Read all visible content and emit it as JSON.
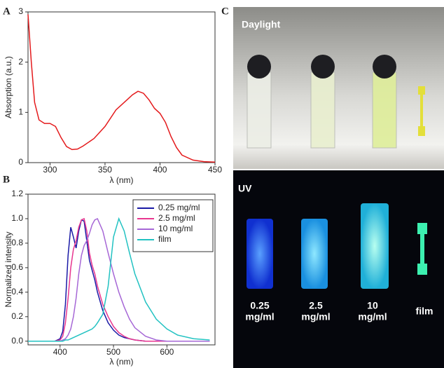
{
  "chart_data": [
    {
      "type": "line",
      "panel_label": "A",
      "x_label": "λ (nm)",
      "y_label": "Absorption (a.u.)",
      "xlim": [
        280,
        450
      ],
      "xticks": [
        300,
        350,
        400,
        450
      ],
      "ylim": [
        0,
        3
      ],
      "yticks": [
        0,
        1,
        2,
        3
      ],
      "x": [
        280,
        283,
        286,
        290,
        295,
        300,
        305,
        310,
        315,
        320,
        325,
        330,
        340,
        350,
        360,
        370,
        375,
        380,
        385,
        390,
        395,
        400,
        405,
        410,
        415,
        420,
        430,
        440,
        450
      ],
      "series": [
        {
          "color": "#e41a1c",
          "values": [
            2.95,
            2.0,
            1.2,
            0.85,
            0.78,
            0.78,
            0.72,
            0.5,
            0.32,
            0.26,
            0.27,
            0.33,
            0.48,
            0.72,
            1.05,
            1.25,
            1.35,
            1.42,
            1.38,
            1.25,
            1.08,
            0.98,
            0.8,
            0.52,
            0.3,
            0.15,
            0.05,
            0.02,
            0.01
          ]
        }
      ]
    },
    {
      "type": "line",
      "panel_label": "B",
      "x_label": "λ (nm)",
      "y_label": "Normalized intensity",
      "xlim": [
        340,
        690
      ],
      "xticks": [
        400,
        500,
        600
      ],
      "ylim": [
        -0.03,
        1.2
      ],
      "yticks": [
        {
          "value": 0,
          "label": "0.0"
        },
        0.2,
        0.4,
        0.6,
        0.8,
        {
          "value": 1,
          "label": "1.0"
        },
        1.2
      ],
      "legend": "upper right",
      "x": [
        340,
        390,
        400,
        405,
        410,
        415,
        420,
        425,
        430,
        435,
        440,
        445,
        450,
        455,
        460,
        465,
        470,
        480,
        490,
        500,
        510,
        520,
        530,
        540,
        560,
        580,
        600,
        620,
        650,
        680
      ],
      "series": [
        {
          "name": "0.25 mg/ml",
          "color": "#1a1aa6",
          "values": [
            0,
            0,
            0.02,
            0.08,
            0.3,
            0.7,
            0.93,
            0.85,
            0.76,
            0.9,
            0.99,
            0.98,
            0.82,
            0.66,
            0.58,
            0.5,
            0.4,
            0.25,
            0.15,
            0.09,
            0.05,
            0.03,
            0.02,
            0.01,
            0,
            0,
            0,
            0,
            0,
            0
          ]
        },
        {
          "name": "2.5 mg/ml",
          "color": "#e8368f",
          "values": [
            0,
            0,
            0.01,
            0.04,
            0.15,
            0.35,
            0.6,
            0.75,
            0.82,
            0.93,
            0.99,
            1.0,
            0.9,
            0.72,
            0.62,
            0.55,
            0.45,
            0.3,
            0.2,
            0.12,
            0.07,
            0.04,
            0.02,
            0.01,
            0,
            0,
            0,
            0,
            0,
            0
          ]
        },
        {
          "name": "10 mg/ml",
          "color": "#a667d6",
          "values": [
            0,
            0,
            0,
            0.01,
            0.02,
            0.05,
            0.1,
            0.2,
            0.35,
            0.55,
            0.7,
            0.78,
            0.82,
            0.88,
            0.95,
            0.99,
            1.0,
            0.9,
            0.72,
            0.55,
            0.4,
            0.28,
            0.18,
            0.11,
            0.04,
            0.01,
            0,
            0,
            0,
            0
          ]
        },
        {
          "name": "film",
          "color": "#22c2c2",
          "values": [
            0,
            0,
            0,
            0,
            0.01,
            0.01,
            0.02,
            0.03,
            0.04,
            0.05,
            0.06,
            0.07,
            0.08,
            0.09,
            0.1,
            0.12,
            0.15,
            0.22,
            0.45,
            0.85,
            1.0,
            0.9,
            0.72,
            0.55,
            0.32,
            0.18,
            0.1,
            0.05,
            0.02,
            0.01
          ]
        }
      ]
    }
  ],
  "photos": {
    "panel_label": "C",
    "daylight_label": "Daylight",
    "uv_label": "UV",
    "sample_labels": [
      [
        "0.25",
        "mg/ml"
      ],
      [
        "2.5",
        "mg/ml"
      ],
      [
        "10",
        "mg/ml"
      ],
      [
        "film"
      ]
    ]
  }
}
